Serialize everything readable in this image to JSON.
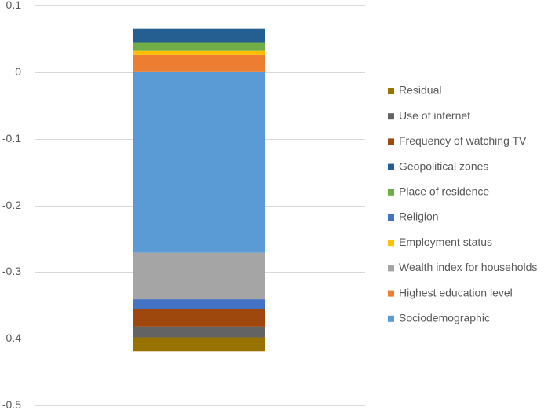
{
  "chart_data": {
    "type": "bar",
    "stacked": true,
    "categories": [
      ""
    ],
    "ylim": [
      -0.5,
      0.1
    ],
    "y_ticks": [
      0.1,
      0,
      -0.1,
      -0.2,
      -0.3,
      -0.4,
      -0.5
    ],
    "y_tick_labels": [
      "0.1",
      "0",
      "-0.1",
      "-0.2",
      "-0.3",
      "-0.4",
      "-0.5"
    ],
    "grid": true,
    "legend_position": "right",
    "title": "",
    "xlabel": "",
    "ylabel": "",
    "series": [
      {
        "name": "Sociodemographic",
        "values": [
          -0.271
        ],
        "color": "#5B9BD5"
      },
      {
        "name": "Highest education level",
        "values": [
          0.026
        ],
        "color": "#ED7D31"
      },
      {
        "name": "Wealth index for households",
        "values": [
          -0.07
        ],
        "color": "#A5A5A5"
      },
      {
        "name": "Employment status",
        "values": [
          0.006
        ],
        "color": "#FFC000"
      },
      {
        "name": "Religion",
        "values": [
          -0.015
        ],
        "color": "#4472C4"
      },
      {
        "name": "Place of residence",
        "values": [
          0.012
        ],
        "color": "#70AD47"
      },
      {
        "name": "Geopolitical zones",
        "values": [
          0.021
        ],
        "color": "#255E91"
      },
      {
        "name": "Frequency of watching TV",
        "values": [
          -0.026
        ],
        "color": "#9E480E"
      },
      {
        "name": "Use of internet",
        "values": [
          -0.016
        ],
        "color": "#636363"
      },
      {
        "name": "Residual",
        "values": [
          -0.021
        ],
        "color": "#997300"
      }
    ]
  }
}
